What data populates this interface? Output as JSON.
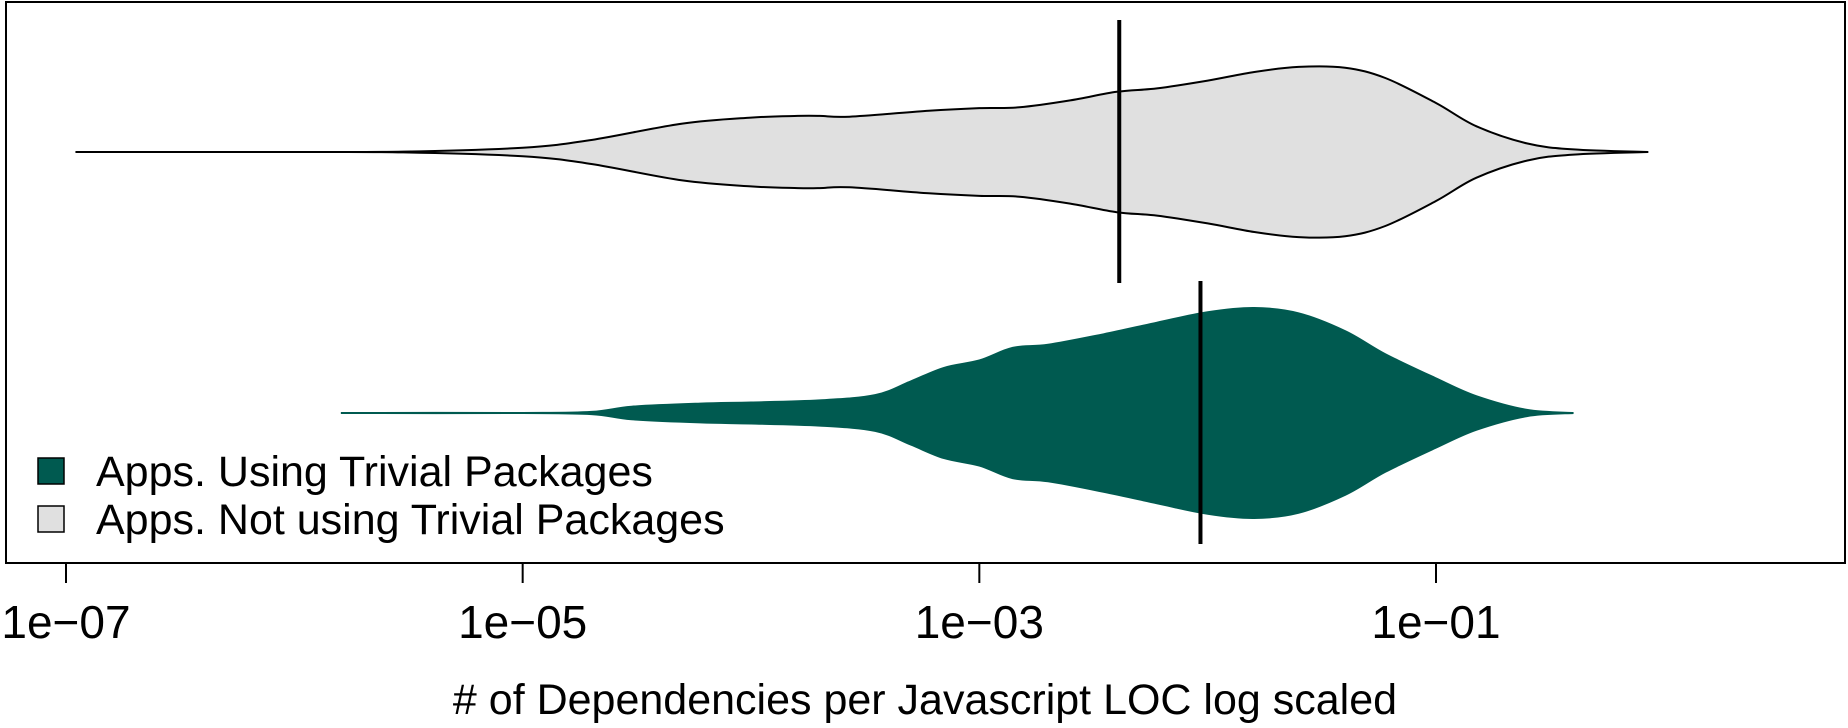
{
  "chart_data": {
    "type": "violin",
    "orientation": "horizontal",
    "xlabel": "# of Dependencies per Javascript LOC log scaled",
    "x_scale": "log10",
    "xlim": [
      8e-08,
      1.2
    ],
    "x_ticks": [
      1e-07,
      1e-05,
      0.001,
      0.1
    ],
    "x_tick_labels": [
      "1e−07",
      "1e−05",
      "1e−03",
      "1e−01"
    ],
    "legend_position": "bottom-left",
    "series": [
      {
        "name": "Apps. Not using Trivial Packages",
        "color": "#e0e0e0",
        "outline": "#000000",
        "row": "top",
        "range": [
          1.1e-07,
          0.85
        ],
        "median": 0.0041,
        "density": [
          [
            1.1e-07,
            0.0
          ],
          [
            1e-06,
            0.0
          ],
          [
            3e-06,
            0.005
          ],
          [
            1e-05,
            0.05
          ],
          [
            2e-05,
            0.14
          ],
          [
            5e-05,
            0.33
          ],
          [
            0.0001,
            0.4
          ],
          [
            0.00016,
            0.42
          ],
          [
            0.0002,
            0.42
          ],
          [
            0.00027,
            0.41
          ],
          [
            0.0006,
            0.48
          ],
          [
            0.001,
            0.51
          ],
          [
            0.0015,
            0.52
          ],
          [
            0.0025,
            0.6
          ],
          [
            0.004,
            0.7
          ],
          [
            0.006,
            0.74
          ],
          [
            0.01,
            0.83
          ],
          [
            0.016,
            0.93
          ],
          [
            0.025,
            0.99
          ],
          [
            0.04,
            0.98
          ],
          [
            0.06,
            0.86
          ],
          [
            0.1,
            0.57
          ],
          [
            0.15,
            0.3
          ],
          [
            0.25,
            0.1
          ],
          [
            0.4,
            0.03
          ],
          [
            0.85,
            0.0
          ]
        ]
      },
      {
        "name": "Apps. Using Trivial Packages",
        "color": "#005a50",
        "outline": "#005a50",
        "row": "bottom",
        "range": [
          1.6e-06,
          0.4
        ],
        "median": 0.0093,
        "density": [
          [
            1.6e-06,
            0.0
          ],
          [
            1e-05,
            0.0
          ],
          [
            2e-05,
            0.01
          ],
          [
            3e-05,
            0.06
          ],
          [
            6e-05,
            0.09
          ],
          [
            0.0001,
            0.1
          ],
          [
            0.0002,
            0.12
          ],
          [
            0.00035,
            0.17
          ],
          [
            0.0005,
            0.3
          ],
          [
            0.0007,
            0.43
          ],
          [
            0.001,
            0.5
          ],
          [
            0.0014,
            0.62
          ],
          [
            0.002,
            0.65
          ],
          [
            0.0035,
            0.75
          ],
          [
            0.006,
            0.86
          ],
          [
            0.01,
            0.96
          ],
          [
            0.016,
            1.0
          ],
          [
            0.025,
            0.95
          ],
          [
            0.04,
            0.78
          ],
          [
            0.06,
            0.56
          ],
          [
            0.1,
            0.33
          ],
          [
            0.15,
            0.16
          ],
          [
            0.25,
            0.03
          ],
          [
            0.4,
            0.0
          ]
        ]
      }
    ]
  }
}
